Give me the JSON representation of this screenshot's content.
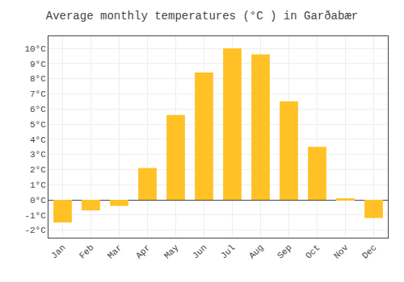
{
  "chart_data": {
    "type": "bar",
    "title": "Average monthly temperatures (°C ) in Garðabær",
    "categories": [
      "Jan",
      "Feb",
      "Mar",
      "Apr",
      "May",
      "Jun",
      "Jul",
      "Aug",
      "Sep",
      "Oct",
      "Nov",
      "Dec"
    ],
    "values": [
      -1.5,
      -0.7,
      -0.4,
      2.1,
      5.6,
      8.4,
      10.0,
      9.6,
      6.5,
      3.5,
      0.1,
      -1.2
    ],
    "color": "#FFC125",
    "ylim": [
      -2.5,
      10.8
    ],
    "yticks": [
      {
        "value": -2,
        "label": "-2°C"
      },
      {
        "value": -1,
        "label": "-1°C"
      },
      {
        "value": 0,
        "label": "0°C"
      },
      {
        "value": 1,
        "label": "1°C"
      },
      {
        "value": 2,
        "label": "2°C"
      },
      {
        "value": 3,
        "label": "3°C"
      },
      {
        "value": 4,
        "label": "4°C"
      },
      {
        "value": 5,
        "label": "5°C"
      },
      {
        "value": 6,
        "label": "6°C"
      },
      {
        "value": 7,
        "label": "7°C"
      },
      {
        "value": 8,
        "label": "8°C"
      },
      {
        "value": 9,
        "label": "9°C"
      },
      {
        "value": 10,
        "label": "10°C"
      }
    ],
    "grid": true
  }
}
